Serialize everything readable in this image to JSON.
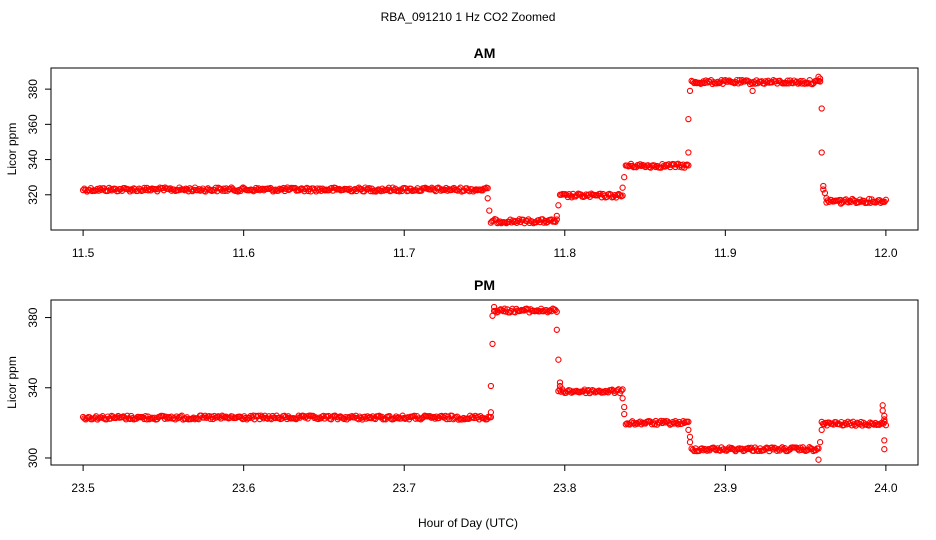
{
  "figure": {
    "title": "RBA_091210  1 Hz CO2 Zoomed",
    "xlabel": "Hour of Day (UTC)"
  },
  "colors": {
    "points": "#ff0000",
    "axes": "#000000",
    "background": "#ffffff"
  },
  "chart_data": [
    {
      "type": "scatter",
      "title": "AM",
      "ylabel": "Licor ppm",
      "xlim": [
        11.48,
        12.02
      ],
      "ylim": [
        300,
        392
      ],
      "xticks": [
        11.5,
        11.6,
        11.7,
        11.8,
        11.9,
        12.0
      ],
      "xtick_labels": [
        "11.5",
        "11.6",
        "11.7",
        "11.8",
        "11.9",
        "12.0"
      ],
      "yticks": [
        320,
        340,
        360,
        380
      ],
      "ytick_labels": [
        "320",
        "340",
        "360",
        "380"
      ],
      "grid": false,
      "segments": [
        {
          "x_start": 11.5,
          "x_end": 11.752,
          "y": 323
        },
        {
          "x_start": 11.754,
          "x_end": 11.795,
          "y": 305
        },
        {
          "x_start": 11.797,
          "x_end": 11.836,
          "y": 319.5
        },
        {
          "x_start": 11.838,
          "x_end": 11.877,
          "y": 336.5
        },
        {
          "x_start": 11.879,
          "x_end": 11.959,
          "y": 384
        },
        {
          "x_start": 11.963,
          "x_end": 12.0,
          "y": 316.5
        }
      ],
      "transition_points": [
        {
          "x": 11.752,
          "y": 318
        },
        {
          "x": 11.753,
          "y": 311
        },
        {
          "x": 11.795,
          "y": 308
        },
        {
          "x": 11.796,
          "y": 314
        },
        {
          "x": 11.836,
          "y": 324
        },
        {
          "x": 11.837,
          "y": 330
        },
        {
          "x": 11.877,
          "y": 344
        },
        {
          "x": 11.877,
          "y": 363
        },
        {
          "x": 11.878,
          "y": 379
        },
        {
          "x": 11.917,
          "y": 379
        },
        {
          "x": 11.958,
          "y": 387
        },
        {
          "x": 11.959,
          "y": 386
        },
        {
          "x": 11.96,
          "y": 369
        },
        {
          "x": 11.96,
          "y": 344
        },
        {
          "x": 11.961,
          "y": 325
        },
        {
          "x": 11.961,
          "y": 323
        },
        {
          "x": 11.962,
          "y": 321
        },
        {
          "x": 11.963,
          "y": 318
        },
        {
          "x": 11.972,
          "y": 315
        }
      ]
    },
    {
      "type": "scatter",
      "title": "PM",
      "ylabel": "Licor ppm",
      "xlim": [
        23.48,
        24.02
      ],
      "ylim": [
        296,
        390
      ],
      "xticks": [
        23.5,
        23.6,
        23.7,
        23.8,
        23.9,
        24.0
      ],
      "xtick_labels": [
        "23.5",
        "23.6",
        "23.7",
        "23.8",
        "23.9",
        "24.0"
      ],
      "yticks": [
        300,
        340,
        380
      ],
      "ytick_labels": [
        "300",
        "340",
        "380"
      ],
      "grid": false,
      "segments": [
        {
          "x_start": 23.5,
          "x_end": 23.754,
          "y": 323
        },
        {
          "x_start": 23.756,
          "x_end": 23.795,
          "y": 384
        },
        {
          "x_start": 23.796,
          "x_end": 23.836,
          "y": 338
        },
        {
          "x_start": 23.838,
          "x_end": 23.877,
          "y": 320
        },
        {
          "x_start": 23.879,
          "x_end": 23.958,
          "y": 305
        },
        {
          "x_start": 23.96,
          "x_end": 24.0,
          "y": 319.5
        }
      ],
      "transition_points": [
        {
          "x": 23.754,
          "y": 326
        },
        {
          "x": 23.754,
          "y": 341
        },
        {
          "x": 23.755,
          "y": 365
        },
        {
          "x": 23.755,
          "y": 381
        },
        {
          "x": 23.756,
          "y": 386
        },
        {
          "x": 23.795,
          "y": 373
        },
        {
          "x": 23.796,
          "y": 356
        },
        {
          "x": 23.797,
          "y": 343
        },
        {
          "x": 23.797,
          "y": 341
        },
        {
          "x": 23.836,
          "y": 334
        },
        {
          "x": 23.837,
          "y": 329
        },
        {
          "x": 23.837,
          "y": 325
        },
        {
          "x": 23.877,
          "y": 316
        },
        {
          "x": 23.878,
          "y": 312
        },
        {
          "x": 23.878,
          "y": 309
        },
        {
          "x": 23.958,
          "y": 299
        },
        {
          "x": 23.959,
          "y": 309
        },
        {
          "x": 23.96,
          "y": 316
        },
        {
          "x": 23.998,
          "y": 330
        },
        {
          "x": 23.998,
          "y": 327
        },
        {
          "x": 23.999,
          "y": 324
        },
        {
          "x": 23.999,
          "y": 322
        },
        {
          "x": 23.999,
          "y": 310
        },
        {
          "x": 23.999,
          "y": 305
        }
      ]
    }
  ]
}
